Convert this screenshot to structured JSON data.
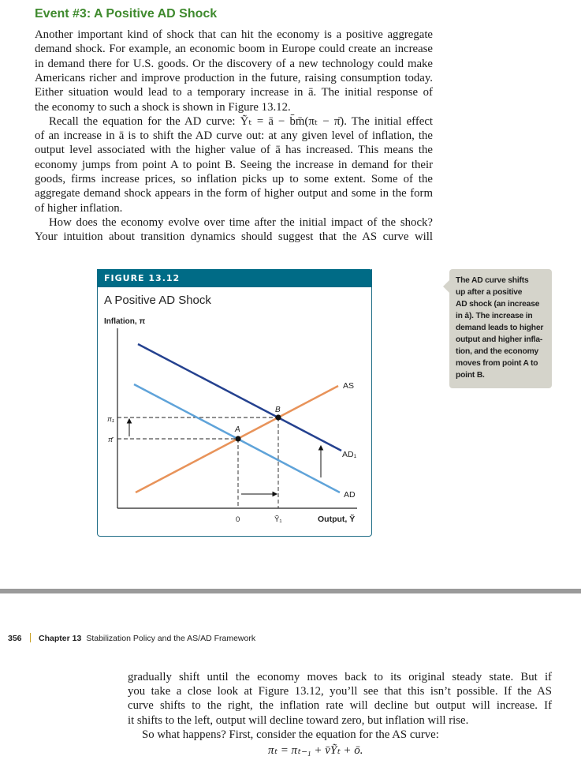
{
  "heading": "Event #3: A Positive AD Shock",
  "paragraph_lines": [
    {
      "text": "Another important kind of shock that can hit the economy is a positive aggregate",
      "style": ""
    },
    {
      "text": "demand shock. For example, an economic boom in Europe could create an increase",
      "style": ""
    },
    {
      "text": "in demand there for U.S. goods. Or the discovery of a new technology could make",
      "style": ""
    },
    {
      "text": "Americans richer and improve production in the future, raising consumption today.",
      "style": ""
    },
    {
      "text": "Either situation would lead to a temporary increase in ā. The initial response of",
      "style": ""
    },
    {
      "text": "the economy to such a shock is shown in Figure 13.12.",
      "style": "last"
    },
    {
      "text": "Recall the equation for the AD curve: Ỹₜ = ā − b̄m̄(πₜ − π̄). The initial effect",
      "style": "ind"
    },
    {
      "text": "of an increase in ā is to shift the AD curve out: at any given level of inflation, the",
      "style": ""
    },
    {
      "text": "output level associated with the higher value of ā has increased. This means the",
      "style": ""
    },
    {
      "text": "economy jumps from point A to point B. Seeing the increase in demand for their",
      "style": ""
    },
    {
      "text": "goods, firms increase prices, so inflation picks up to some extent. Some of the",
      "style": ""
    },
    {
      "text": "aggregate demand shock appears in the form of higher output and some in the form",
      "style": ""
    },
    {
      "text": "of higher inflation.",
      "style": "last"
    },
    {
      "text": "How does the economy evolve over time after the initial impact of the shock?",
      "style": "ind"
    },
    {
      "text": "Your intuition about transition dynamics should suggest that the AS curve will",
      "style": ""
    }
  ],
  "figure": {
    "label": "FIGURE 13.12",
    "title": "A Positive AD Shock",
    "y_axis_label": "Inflation, π",
    "x_axis_label": "Output, Ỹ",
    "x_ticks": [
      "0",
      "Ỹ₁"
    ],
    "y_ticks": [
      "π₁",
      "π̄"
    ],
    "curves": {
      "AS": "AS",
      "AD": "AD",
      "AD1": "AD₁"
    },
    "points": {
      "A": "A",
      "B": "B"
    },
    "colors": {
      "AS": "#e8935a",
      "AD": "#5fa3d9",
      "AD1": "#24418f",
      "header": "#006b86"
    }
  },
  "side_note_lines": [
    "The AD curve shifts",
    "up after a positive",
    "AD shock (an increase",
    "in ā). The increase in",
    "demand leads to higher",
    "output and higher infla-",
    "tion, and the economy",
    "moves from point A to",
    "point B."
  ],
  "footer": {
    "page_number": "356",
    "chapter": "Chapter 13",
    "chapter_title": "Stabilization Policy and the AS/AD Framework"
  },
  "next_page_lines": [
    {
      "text": "gradually shift until the economy moves back to its original steady state. But if",
      "style": ""
    },
    {
      "text": "you take a close look at Figure 13.12, you’ll see that this isn’t possible. If the AS",
      "style": ""
    },
    {
      "text": "curve shifts to the right, the inflation rate will decline but output will increase. If",
      "style": ""
    },
    {
      "text": "it shifts to the left, output will decline toward zero, but inflation will rise.",
      "style": "last"
    },
    {
      "text": "So what happens? First, consider the equation for the AS curve:",
      "style": "ind last"
    }
  ],
  "equation": "πₜ = πₜ₋₁ + v̄Ỹₜ + ō."
}
